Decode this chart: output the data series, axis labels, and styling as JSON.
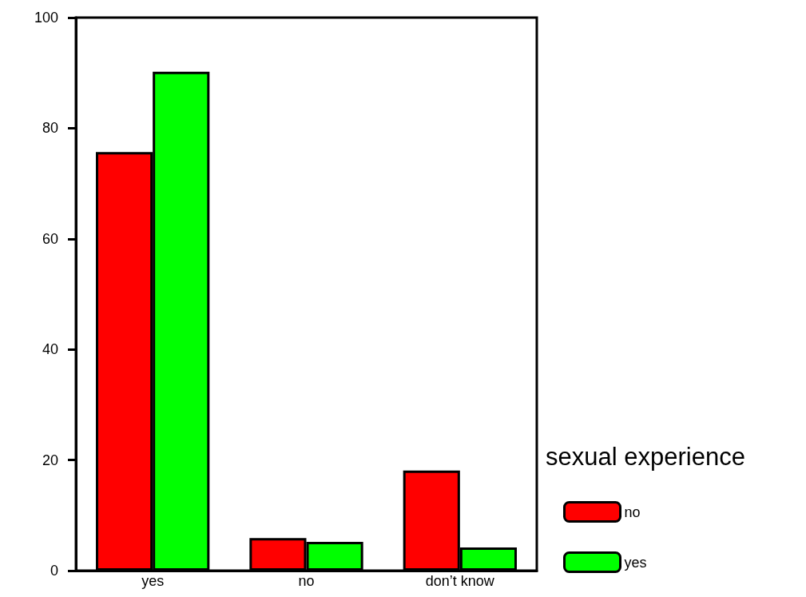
{
  "chart_data": {
    "type": "bar",
    "categories": [
      "yes",
      "no",
      "don’t know"
    ],
    "legend_title": "sexual experience",
    "legend": "right",
    "grid": false,
    "series": [
      {
        "name": "no",
        "color": "#ff0000",
        "values": [
          75.7,
          5.9,
          18.1
        ]
      },
      {
        "name": "yes",
        "color": "#00ff00",
        "values": [
          90.2,
          5.2,
          4.2
        ]
      }
    ],
    "ylim": [
      0,
      100
    ],
    "yticks": [
      0,
      20,
      40,
      60,
      80,
      100
    ]
  }
}
